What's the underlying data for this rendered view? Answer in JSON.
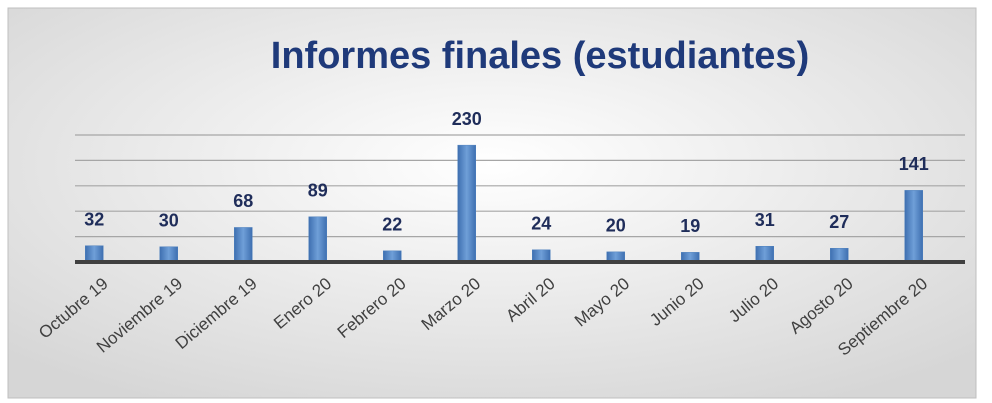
{
  "chart_data": {
    "type": "bar",
    "title": "Informes finales (estudiantes)",
    "categories": [
      "Octubre 19",
      "Noviembre 19",
      "Diciembre 19",
      "Enero 20",
      "Febrero 20",
      "Marzo 20",
      "Abril 20",
      "Mayo 20",
      "Junio 20",
      "Julio 20",
      "Agosto 20",
      "Septiembre 20"
    ],
    "values": [
      32,
      30,
      68,
      89,
      22,
      230,
      24,
      20,
      19,
      31,
      27,
      141
    ],
    "color": "#4f81bd",
    "ylim": [
      0,
      250
    ],
    "yticks": [
      0,
      50,
      100,
      150,
      200,
      250
    ],
    "grid": true
  }
}
